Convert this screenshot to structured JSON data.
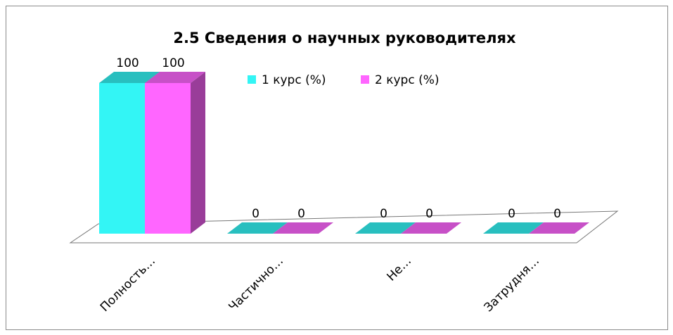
{
  "chart_data": {
    "type": "bar3d",
    "title": "2.5 Сведения о научных руководителях",
    "categories": [
      "Полность…",
      "Частично…",
      "Не…",
      "Затрудня…"
    ],
    "series": [
      {
        "name": "1 курс (%)",
        "color": "#33f5f5",
        "values": [
          100,
          0,
          0,
          0
        ]
      },
      {
        "name": "2 курс (%)",
        "color": "#ff66ff",
        "values": [
          100,
          0,
          0,
          0
        ]
      }
    ],
    "legend": "top-right"
  }
}
